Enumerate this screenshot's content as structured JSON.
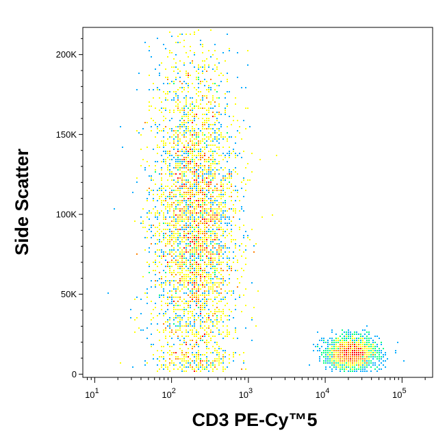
{
  "chart_data": {
    "type": "scatter",
    "subtype": "density-dot-plot",
    "title": "",
    "xlabel": "CD3 PE-Cy™5",
    "ylabel": "Side Scatter",
    "xscale": "log",
    "xlim": [
      7,
      250000
    ],
    "ylim": [
      -2000,
      217000
    ],
    "x_ticks": [
      {
        "value": 10,
        "base": "10",
        "exp": "1"
      },
      {
        "value": 100,
        "base": "10",
        "exp": "2"
      },
      {
        "value": 1000,
        "base": "10",
        "exp": "3"
      },
      {
        "value": 10000,
        "base": "10",
        "exp": "4"
      },
      {
        "value": 100000,
        "base": "10",
        "exp": "5"
      }
    ],
    "y_ticks": [
      {
        "value": 0,
        "label": "0"
      },
      {
        "value": 50000,
        "label": "50K"
      },
      {
        "value": 100000,
        "label": "100K"
      },
      {
        "value": 150000,
        "label": "150K"
      },
      {
        "value": 200000,
        "label": "200K"
      }
    ],
    "grid": false,
    "legend": "none",
    "color_scale": [
      "#0000ff",
      "#00aaff",
      "#00ff80",
      "#ffff00",
      "#ff8000",
      "#ff0000"
    ],
    "series": [
      {
        "cx": 200,
        "cy": 95000,
        "sx_log": 0.28,
        "sy": 52000,
        "n": 17000
      },
      {
        "cx": 22000,
        "cy": 13000,
        "sx_log": 0.16,
        "sy": 5000,
        "n": 2200
      }
    ]
  }
}
